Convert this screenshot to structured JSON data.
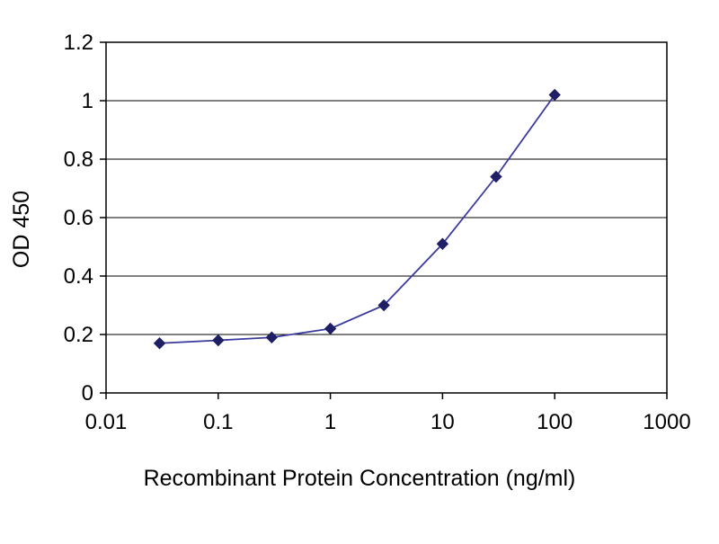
{
  "chart_data": {
    "type": "line",
    "title": "",
    "xlabel": "Recombinant Protein Concentration (ng/ml)",
    "ylabel": "OD 450",
    "x_scale": "log",
    "y_scale": "linear",
    "xlim": [
      0.01,
      1000
    ],
    "ylim": [
      0,
      1.2
    ],
    "grid": "horizontal",
    "legend_position": "none",
    "frame_color": "#000000",
    "grid_color": "#000000",
    "x_ticks": [
      {
        "value": 0.01,
        "label": "0.01"
      },
      {
        "value": 0.1,
        "label": "0.1"
      },
      {
        "value": 1,
        "label": "1"
      },
      {
        "value": 10,
        "label": "10"
      },
      {
        "value": 100,
        "label": "100"
      },
      {
        "value": 1000,
        "label": "1000"
      }
    ],
    "y_ticks": [
      {
        "value": 0,
        "label": "0"
      },
      {
        "value": 0.2,
        "label": "0.2"
      },
      {
        "value": 0.4,
        "label": "0.4"
      },
      {
        "value": 0.6,
        "label": "0.6"
      },
      {
        "value": 0.8,
        "label": "0.8"
      },
      {
        "value": 1,
        "label": "1"
      },
      {
        "value": 1.2,
        "label": "1.2"
      }
    ],
    "series": [
      {
        "name": "OD 450",
        "color": "#3b3b9e",
        "marker": "diamond",
        "marker_color": "#1f1f66",
        "x": [
          0.03,
          0.1,
          0.3,
          1,
          3,
          10,
          30,
          100
        ],
        "y": [
          0.17,
          0.18,
          0.19,
          0.22,
          0.3,
          0.51,
          0.74,
          1.02
        ]
      }
    ]
  }
}
